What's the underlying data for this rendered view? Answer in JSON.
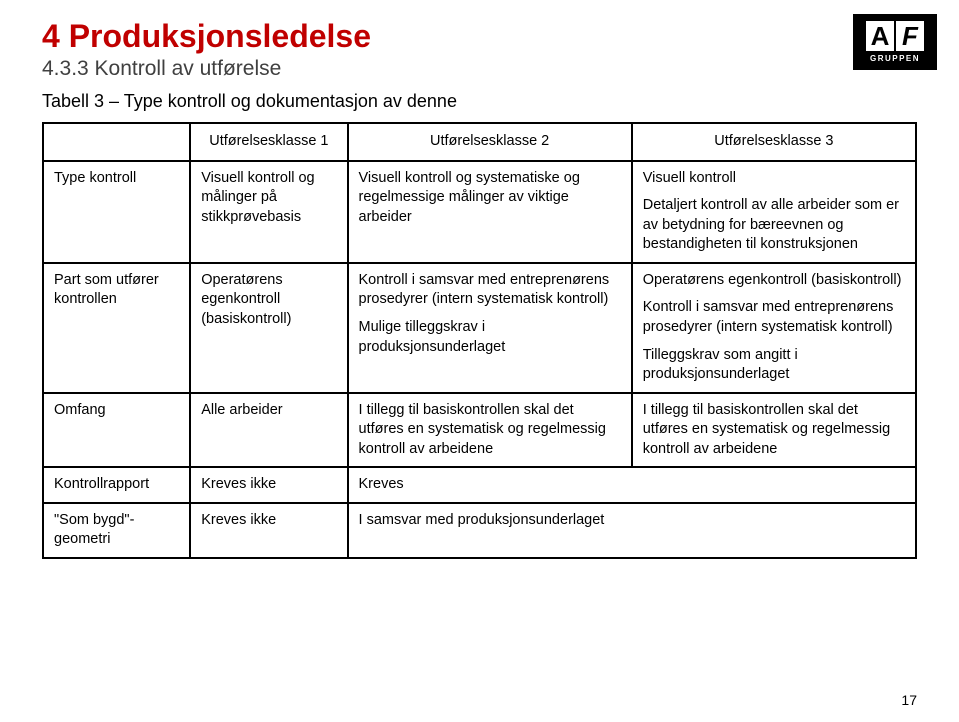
{
  "header": {
    "title": "4 Produksjonsledelse",
    "subtitle": "4.3.3 Kontroll av utførelse",
    "table_caption": "Tabell 3 – Type kontroll og dokumentasjon av denne",
    "logo_text": "GRUPPEN"
  },
  "table": {
    "col_headers": [
      "",
      "Utførelsesklasse 1",
      "Utførelsesklasse 2",
      "Utførelsesklasse 3"
    ],
    "rows": [
      {
        "label": "Type kontroll",
        "c1": "Visuell kontroll og målinger på stikkprøvebasis",
        "c2": "Visuell kontroll og systematiske og regelmessige målinger av viktige arbeider",
        "c3_p1": "Visuell kontroll",
        "c3_p2": "Detaljert kontroll av alle arbeider som er av betydning for bæreevnen og bestandigheten til konstruksjonen"
      },
      {
        "label": "Part som utfører kontrollen",
        "c1": "Operatørens egenkontroll (basiskontroll)",
        "c2_p1": "Kontroll i samsvar med entreprenørens prosedyrer (intern systematisk kontroll)",
        "c2_p2": "Mulige tilleggskrav i produksjonsunderlaget",
        "c3_p1": "Operatørens egenkontroll (basiskontroll)",
        "c3_p2": "Kontroll i samsvar med entreprenørens prosedyrer (intern systematisk kontroll)",
        "c3_p3": "Tilleggskrav som angitt i produksjonsunderlaget"
      },
      {
        "label": "Omfang",
        "c1": "Alle arbeider",
        "c2": "I tillegg til basiskontrollen skal det utføres en systematisk og regelmessig kontroll av arbeidene",
        "c3": "I tillegg til basiskontrollen skal det utføres en systematisk og regelmessig kontroll av arbeidene"
      },
      {
        "label": "Kontrollrapport",
        "c1": "Kreves ikke",
        "c23": "Kreves"
      },
      {
        "label": "\"Som bygd\"-geometri",
        "c1": "Kreves ikke",
        "c23": "I samsvar med produksjonsunderlaget"
      }
    ]
  },
  "page_number": "17"
}
